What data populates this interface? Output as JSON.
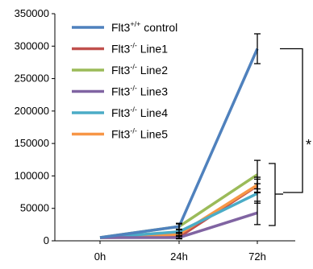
{
  "chart_data": {
    "type": "line",
    "categories": [
      "0h",
      "24h",
      "72h"
    ],
    "ylim": [
      0,
      350000
    ],
    "yticks": [
      0,
      50000,
      100000,
      150000,
      200000,
      250000,
      300000,
      350000
    ],
    "ytick_labels": [
      "0",
      "50000",
      "100000",
      "150000",
      "200000",
      "250000",
      "300000",
      "350000"
    ],
    "legend_position": "top-left",
    "series": [
      {
        "name_main": "Flt3",
        "name_sup": "+/+",
        "name_rest": " control",
        "color": "#4f81bd",
        "values": [
          5000,
          22000,
          296000
        ],
        "err": [
          null,
          5000,
          23000
        ]
      },
      {
        "name_main": "Flt3",
        "name_sup": "-/-",
        "name_rest": " Line1",
        "color": "#c0504d",
        "values": [
          5000,
          6000,
          85000
        ],
        "err": [
          null,
          2000,
          10000
        ]
      },
      {
        "name_main": "Flt3",
        "name_sup": "-/-",
        "name_rest": " Line2",
        "color": "#9bbb59",
        "values": [
          5000,
          22000,
          102000
        ],
        "err": [
          null,
          4000,
          22000
        ]
      },
      {
        "name_main": "Flt3",
        "name_sup": "-/-",
        "name_rest": " Line3",
        "color": "#8064a2",
        "values": [
          5000,
          5000,
          43000
        ],
        "err": [
          null,
          2000,
          18000
        ]
      },
      {
        "name_main": "Flt3",
        "name_sup": "-/-",
        "name_rest": " Line4",
        "color": "#4bacc6",
        "values": [
          5000,
          14000,
          73000
        ],
        "err": [
          null,
          3000,
          15000
        ]
      },
      {
        "name_main": "Flt3",
        "name_sup": "-/-",
        "name_rest": " Line5",
        "color": "#f79646",
        "values": [
          5000,
          10000,
          86000
        ],
        "err": [
          null,
          3000,
          12000
        ]
      }
    ],
    "annotations": [
      {
        "text": "*"
      }
    ]
  }
}
